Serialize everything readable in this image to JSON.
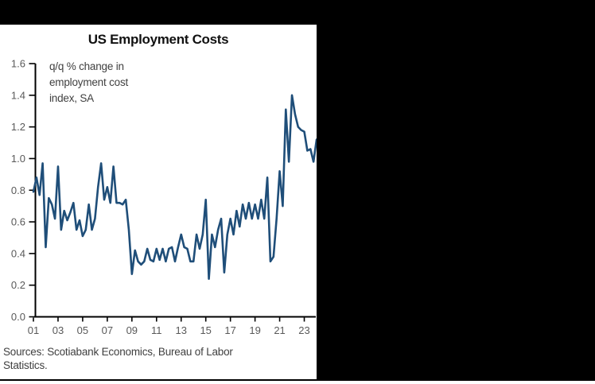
{
  "backdrop_color": "#000000",
  "panel_color": "#ffffff",
  "chart": {
    "annotation_lines": [
      "q/q % change in",
      "employment cost",
      "index, SA"
    ],
    "source_lines": [
      "Sources: Scotiabank Economics, Bureau of Labor",
      "Statistics."
    ]
  },
  "chart_data": {
    "type": "line",
    "title": "US Employment Costs",
    "annotation": "q/q % change in employment cost index, SA",
    "source_note": "Sources: Scotiabank Economics, Bureau of Labor Statistics.",
    "frequency": "quarterly",
    "x_start": "2001Q1",
    "x_end": "2024Q1",
    "x_tick_labels": [
      "01",
      "03",
      "05",
      "07",
      "09",
      "11",
      "13",
      "15",
      "17",
      "19",
      "21",
      "23"
    ],
    "ylim": [
      0.0,
      1.6
    ],
    "y_tick_step": 0.2,
    "y_tick_labels": [
      "0.0",
      "0.2",
      "0.4",
      "0.6",
      "0.8",
      "1.0",
      "1.2",
      "1.4",
      "1.6"
    ],
    "grid": false,
    "legend": "none",
    "line_color": "#1f4e79",
    "axis_color": "#000000",
    "tick_label_color": "#595959",
    "series": [
      {
        "name": "US employment cost index, q/q % change, SA",
        "color": "#1f4e79",
        "values": [
          0.79,
          0.88,
          0.77,
          0.97,
          0.44,
          0.75,
          0.71,
          0.62,
          0.95,
          0.55,
          0.67,
          0.61,
          0.66,
          0.72,
          0.55,
          0.61,
          0.51,
          0.55,
          0.71,
          0.55,
          0.62,
          0.82,
          0.97,
          0.74,
          0.82,
          0.72,
          0.95,
          0.72,
          0.72,
          0.71,
          0.74,
          0.55,
          0.27,
          0.42,
          0.35,
          0.33,
          0.35,
          0.43,
          0.36,
          0.35,
          0.43,
          0.36,
          0.43,
          0.35,
          0.43,
          0.44,
          0.35,
          0.44,
          0.52,
          0.44,
          0.43,
          0.35,
          0.35,
          0.52,
          0.43,
          0.52,
          0.74,
          0.24,
          0.52,
          0.44,
          0.55,
          0.62,
          0.28,
          0.52,
          0.62,
          0.52,
          0.67,
          0.57,
          0.71,
          0.62,
          0.72,
          0.62,
          0.71,
          0.62,
          0.74,
          0.62,
          0.88,
          0.35,
          0.38,
          0.62,
          0.92,
          0.7,
          1.31,
          0.98,
          1.4,
          1.28,
          1.2,
          1.18,
          1.17,
          1.05,
          1.06,
          0.98,
          1.12
        ]
      }
    ]
  }
}
